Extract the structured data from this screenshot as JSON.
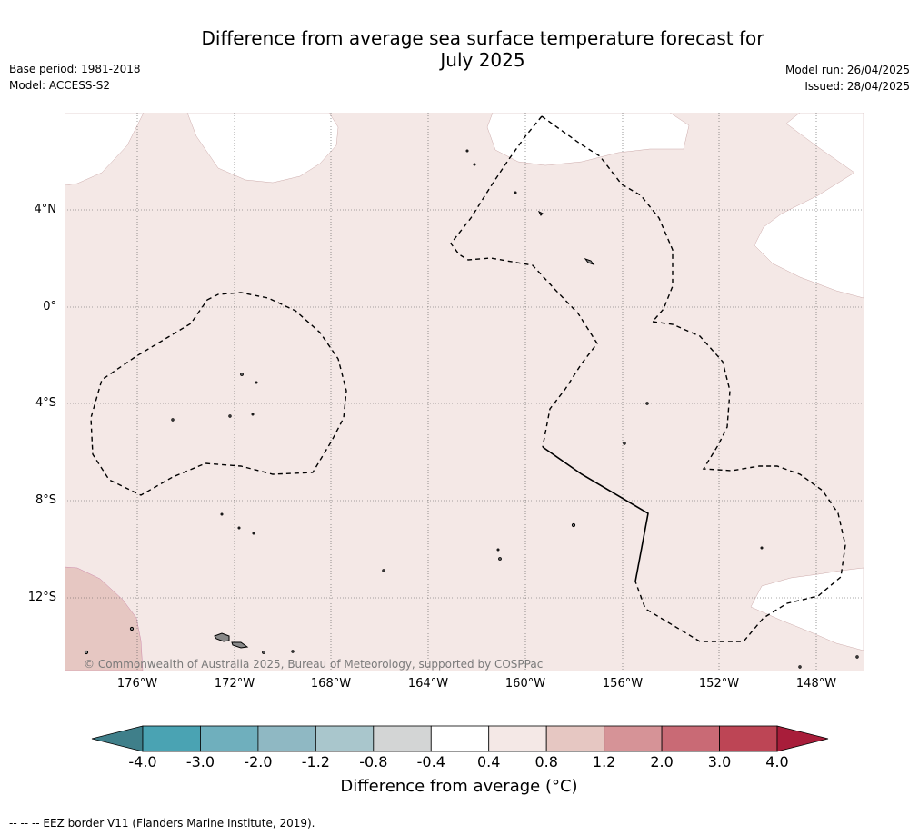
{
  "header": {
    "title_line1": "Difference from average sea surface temperature forecast for",
    "title_line2": "July 2025",
    "base_period": "Base period: 1981-2018",
    "model": "Model: ACCESS-S2",
    "model_run": "Model run: 26/04/2025",
    "issued": "Issued: 28/04/2025"
  },
  "map": {
    "lat_labels": [
      "4°N",
      "0°",
      "4°S",
      "8°S",
      "12°S"
    ],
    "lon_labels": [
      "176°W",
      "172°W",
      "168°W",
      "164°W",
      "160°W",
      "156°W",
      "152°W",
      "148°W"
    ],
    "copyright": "© Commonwealth of Australia 2025, Bureau of Meteorology, supported by COSPPac",
    "colors": {
      "anomaly_0_4_to_0_8": "#f4e8e6",
      "anomaly_0_8_to_1_2": "#e6c7c2",
      "neutral": "#ffffff",
      "eez_border": "#000000",
      "grid": "#555555"
    }
  },
  "legend": {
    "labels": [
      "-4.0",
      "-3.0",
      "-2.0",
      "-1.2",
      "-0.8",
      "-0.4",
      "0.4",
      "0.8",
      "1.2",
      "2.0",
      "3.0",
      "4.0"
    ],
    "colors": [
      "#3f7f8a",
      "#4aa3b3",
      "#6fafbd",
      "#8fb8c3",
      "#a9c6cc",
      "#d3d5d5",
      "#ffffff",
      "#f4e8e6",
      "#e6c7c2",
      "#d69397",
      "#c96a75",
      "#bd4555",
      "#a81d3a"
    ],
    "title": "Difference from average (°C)"
  },
  "footer": {
    "eez_note": "--  --  -- EEZ border V11 (Flanders Marine Institute, 2019)."
  }
}
